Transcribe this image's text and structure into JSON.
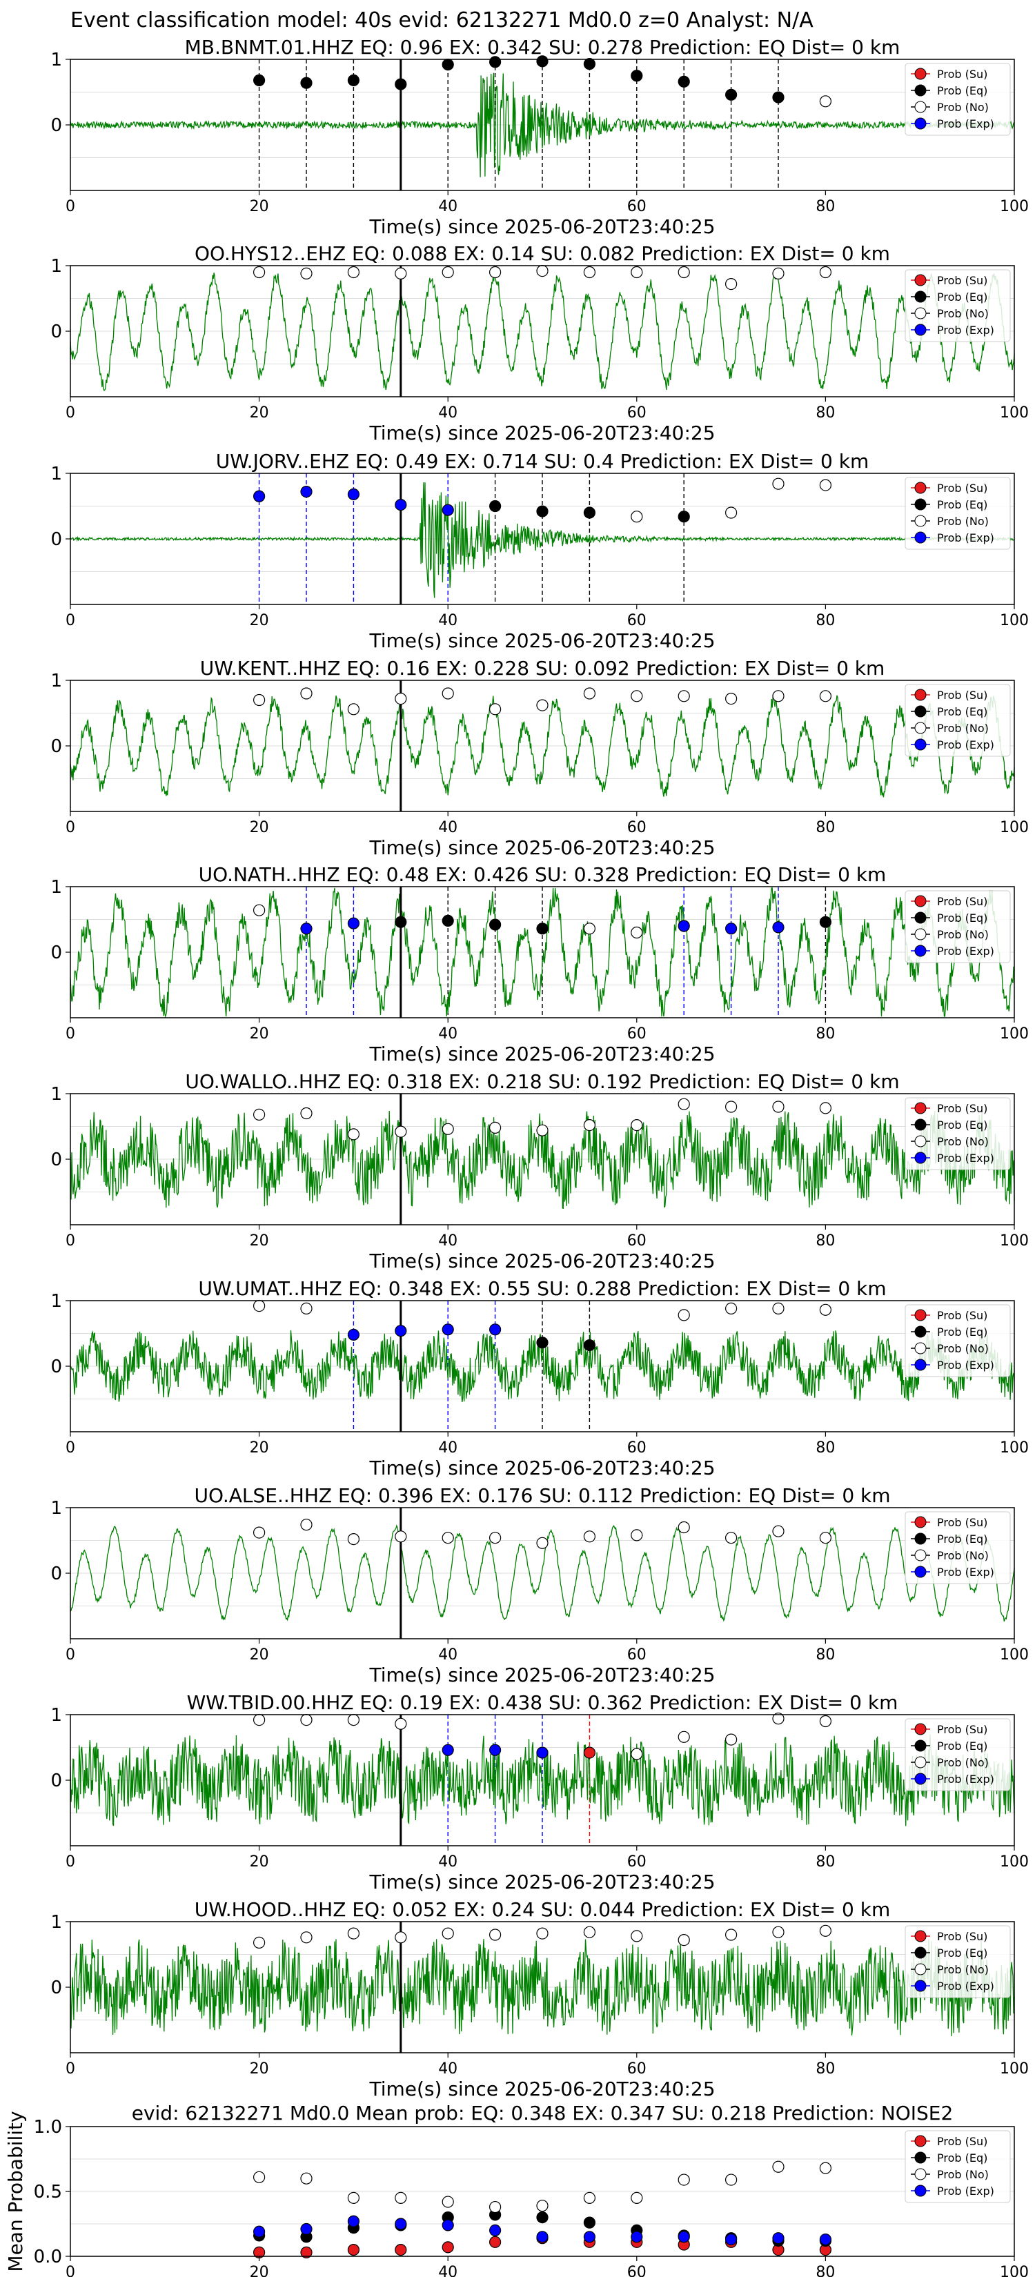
{
  "figure": {
    "title": "Event classification model: 40s evid: 62132271 Md0.0 z=0 Analyst: N/A"
  },
  "legend_items": [
    {
      "label": "Prob (Su)",
      "color": "#e41a1c",
      "fill": "#e41a1c"
    },
    {
      "label": "Prob (Eq)",
      "color": "#000000",
      "fill": "#000000"
    },
    {
      "label": "Prob (No)",
      "color": "#000000",
      "fill": "#ffffff"
    },
    {
      "label": "Prob (Exp)",
      "color": "#0000ff",
      "fill": "#0000ff"
    }
  ],
  "colors": {
    "waveform": "#008000",
    "eq_marker": "#000000",
    "su_marker": "#e41a1c",
    "exp_marker": "#0000ff",
    "no_marker_face": "#ffffff",
    "origin_line": "#000000",
    "grid": "#dddddd"
  },
  "chart_data": [
    {
      "type": "line",
      "title": "MB.BNMT.01.HHZ   EQ: 0.96  EX: 0.342  SU: 0.278   Prediction: EQ    Dist= 0 km",
      "xlabel": "Time(s) since 2025-06-20T23:40:25",
      "xlim": [
        0,
        100
      ],
      "x_ticks": [
        0,
        20,
        40,
        60,
        80,
        100
      ],
      "y_ticks": [
        0,
        1
      ],
      "origin_time": 35,
      "waveform": {
        "style": "event",
        "event_time": 45,
        "noise": 0.05,
        "amplitude": 0.95
      },
      "points": [
        {
          "x": 20,
          "y": 0.68,
          "class": "eq"
        },
        {
          "x": 25,
          "y": 0.64,
          "class": "eq"
        },
        {
          "x": 30,
          "y": 0.68,
          "class": "eq"
        },
        {
          "x": 35,
          "y": 0.62,
          "class": "eq"
        },
        {
          "x": 40,
          "y": 0.92,
          "class": "eq"
        },
        {
          "x": 45,
          "y": 0.96,
          "class": "eq"
        },
        {
          "x": 50,
          "y": 0.97,
          "class": "eq"
        },
        {
          "x": 55,
          "y": 0.93,
          "class": "eq"
        },
        {
          "x": 60,
          "y": 0.75,
          "class": "eq"
        },
        {
          "x": 65,
          "y": 0.66,
          "class": "eq"
        },
        {
          "x": 70,
          "y": 0.46,
          "class": "eq"
        },
        {
          "x": 75,
          "y": 0.42,
          "class": "eq"
        },
        {
          "x": 80,
          "y": 0.36,
          "class": "no"
        }
      ]
    },
    {
      "type": "line",
      "title": "OO.HYS12..EHZ   EQ: 0.088  EX: 0.14  SU: 0.082   Prediction: EX    Dist= 0 km",
      "xlabel": "Time(s) since 2025-06-20T23:40:25",
      "xlim": [
        0,
        100
      ],
      "x_ticks": [
        0,
        20,
        40,
        60,
        80,
        100
      ],
      "y_ticks": [
        0,
        1
      ],
      "origin_time": 35,
      "waveform": {
        "style": "oscillation",
        "noise": 0.1,
        "amplitude": 0.85
      },
      "points": [
        {
          "x": 20,
          "y": 0.9,
          "class": "no"
        },
        {
          "x": 25,
          "y": 0.88,
          "class": "no"
        },
        {
          "x": 30,
          "y": 0.9,
          "class": "no"
        },
        {
          "x": 35,
          "y": 0.88,
          "class": "no"
        },
        {
          "x": 40,
          "y": 0.9,
          "class": "no"
        },
        {
          "x": 45,
          "y": 0.9,
          "class": "no"
        },
        {
          "x": 50,
          "y": 0.92,
          "class": "no"
        },
        {
          "x": 55,
          "y": 0.9,
          "class": "no"
        },
        {
          "x": 60,
          "y": 0.9,
          "class": "no"
        },
        {
          "x": 65,
          "y": 0.9,
          "class": "no"
        },
        {
          "x": 70,
          "y": 0.72,
          "class": "no"
        },
        {
          "x": 75,
          "y": 0.88,
          "class": "no"
        },
        {
          "x": 80,
          "y": 0.9,
          "class": "no"
        }
      ]
    },
    {
      "type": "line",
      "title": "UW.JORV..EHZ   EQ: 0.49  EX: 0.714  SU: 0.4   Prediction: EX    Dist= 0 km",
      "xlabel": "Time(s) since 2025-06-20T23:40:25",
      "xlim": [
        0,
        100
      ],
      "x_ticks": [
        0,
        20,
        40,
        60,
        80,
        100
      ],
      "y_ticks": [
        0,
        1
      ],
      "origin_time": 35,
      "waveform": {
        "style": "event",
        "event_time": 39,
        "noise": 0.02,
        "amplitude": 0.95
      },
      "points": [
        {
          "x": 20,
          "y": 0.65,
          "class": "exp"
        },
        {
          "x": 25,
          "y": 0.72,
          "class": "exp"
        },
        {
          "x": 30,
          "y": 0.68,
          "class": "exp"
        },
        {
          "x": 35,
          "y": 0.52,
          "class": "exp"
        },
        {
          "x": 40,
          "y": 0.44,
          "class": "exp"
        },
        {
          "x": 45,
          "y": 0.5,
          "class": "eq"
        },
        {
          "x": 50,
          "y": 0.42,
          "class": "eq"
        },
        {
          "x": 55,
          "y": 0.4,
          "class": "eq"
        },
        {
          "x": 60,
          "y": 0.34,
          "class": "no"
        },
        {
          "x": 65,
          "y": 0.34,
          "class": "eq"
        },
        {
          "x": 70,
          "y": 0.4,
          "class": "no"
        },
        {
          "x": 75,
          "y": 0.84,
          "class": "no"
        },
        {
          "x": 80,
          "y": 0.82,
          "class": "no"
        }
      ]
    },
    {
      "type": "line",
      "title": "UW.KENT..HHZ   EQ: 0.16  EX: 0.228  SU: 0.092   Prediction: EX    Dist= 0 km",
      "xlabel": "Time(s) since 2025-06-20T23:40:25",
      "xlim": [
        0,
        100
      ],
      "x_ticks": [
        0,
        20,
        40,
        60,
        80,
        100
      ],
      "y_ticks": [
        0,
        1
      ],
      "origin_time": 35,
      "waveform": {
        "style": "oscillation",
        "noise": 0.12,
        "amplitude": 0.7
      },
      "points": [
        {
          "x": 20,
          "y": 0.7,
          "class": "no"
        },
        {
          "x": 25,
          "y": 0.8,
          "class": "no"
        },
        {
          "x": 30,
          "y": 0.56,
          "class": "no"
        },
        {
          "x": 35,
          "y": 0.72,
          "class": "no"
        },
        {
          "x": 40,
          "y": 0.8,
          "class": "no"
        },
        {
          "x": 45,
          "y": 0.56,
          "class": "no"
        },
        {
          "x": 50,
          "y": 0.62,
          "class": "no"
        },
        {
          "x": 55,
          "y": 0.8,
          "class": "no"
        },
        {
          "x": 60,
          "y": 0.76,
          "class": "no"
        },
        {
          "x": 65,
          "y": 0.76,
          "class": "no"
        },
        {
          "x": 70,
          "y": 0.72,
          "class": "no"
        },
        {
          "x": 75,
          "y": 0.76,
          "class": "no"
        },
        {
          "x": 80,
          "y": 0.76,
          "class": "no"
        }
      ]
    },
    {
      "type": "line",
      "title": "UO.NATH..HHZ   EQ: 0.48  EX: 0.426  SU: 0.328   Prediction: EQ    Dist= 0 km",
      "xlabel": "Time(s) since 2025-06-20T23:40:25",
      "xlim": [
        0,
        100
      ],
      "x_ticks": [
        0,
        20,
        40,
        60,
        80,
        100
      ],
      "y_ticks": [
        0,
        1
      ],
      "origin_time": 35,
      "waveform": {
        "style": "oscillation",
        "noise": 0.2,
        "amplitude": 0.85
      },
      "points": [
        {
          "x": 20,
          "y": 0.64,
          "class": "no"
        },
        {
          "x": 25,
          "y": 0.36,
          "class": "exp"
        },
        {
          "x": 30,
          "y": 0.44,
          "class": "exp"
        },
        {
          "x": 35,
          "y": 0.46,
          "class": "eq"
        },
        {
          "x": 40,
          "y": 0.48,
          "class": "eq"
        },
        {
          "x": 45,
          "y": 0.42,
          "class": "eq"
        },
        {
          "x": 50,
          "y": 0.36,
          "class": "eq"
        },
        {
          "x": 55,
          "y": 0.36,
          "class": "no"
        },
        {
          "x": 60,
          "y": 0.3,
          "class": "no"
        },
        {
          "x": 65,
          "y": 0.4,
          "class": "exp"
        },
        {
          "x": 70,
          "y": 0.36,
          "class": "exp"
        },
        {
          "x": 75,
          "y": 0.38,
          "class": "exp"
        },
        {
          "x": 80,
          "y": 0.46,
          "class": "eq"
        }
      ]
    },
    {
      "type": "line",
      "title": "UO.WALLO..HHZ   EQ: 0.318  EX: 0.218  SU: 0.192   Prediction: EQ    Dist= 0 km",
      "xlabel": "Time(s) since 2025-06-20T23:40:25",
      "xlim": [
        0,
        100
      ],
      "x_ticks": [
        0,
        20,
        40,
        60,
        80,
        100
      ],
      "y_ticks": [
        0,
        1
      ],
      "origin_time": 35,
      "waveform": {
        "style": "noisy",
        "noise": 0.45,
        "amplitude": 0.3
      },
      "points": [
        {
          "x": 20,
          "y": 0.68,
          "class": "no"
        },
        {
          "x": 25,
          "y": 0.7,
          "class": "no"
        },
        {
          "x": 30,
          "y": 0.38,
          "class": "no"
        },
        {
          "x": 35,
          "y": 0.42,
          "class": "no"
        },
        {
          "x": 40,
          "y": 0.46,
          "class": "no"
        },
        {
          "x": 45,
          "y": 0.48,
          "class": "no"
        },
        {
          "x": 50,
          "y": 0.44,
          "class": "no"
        },
        {
          "x": 55,
          "y": 0.52,
          "class": "no"
        },
        {
          "x": 60,
          "y": 0.52,
          "class": "no"
        },
        {
          "x": 65,
          "y": 0.84,
          "class": "no"
        },
        {
          "x": 70,
          "y": 0.8,
          "class": "no"
        },
        {
          "x": 75,
          "y": 0.8,
          "class": "no"
        },
        {
          "x": 80,
          "y": 0.78,
          "class": "no"
        }
      ]
    },
    {
      "type": "line",
      "title": "UW.UMAT..HHZ   EQ: 0.348  EX: 0.55  SU: 0.288   Prediction: EX    Dist= 0 km",
      "xlabel": "Time(s) since 2025-06-20T23:40:25",
      "xlim": [
        0,
        100
      ],
      "x_ticks": [
        0,
        20,
        40,
        60,
        80,
        100
      ],
      "y_ticks": [
        0,
        1
      ],
      "origin_time": 35,
      "waveform": {
        "style": "noisy",
        "noise": 0.3,
        "amplitude": 0.25
      },
      "points": [
        {
          "x": 20,
          "y": 0.92,
          "class": "no"
        },
        {
          "x": 25,
          "y": 0.88,
          "class": "no"
        },
        {
          "x": 30,
          "y": 0.48,
          "class": "exp"
        },
        {
          "x": 35,
          "y": 0.54,
          "class": "exp"
        },
        {
          "x": 40,
          "y": 0.56,
          "class": "exp"
        },
        {
          "x": 45,
          "y": 0.56,
          "class": "exp"
        },
        {
          "x": 50,
          "y": 0.36,
          "class": "eq"
        },
        {
          "x": 55,
          "y": 0.32,
          "class": "eq"
        },
        {
          "x": 65,
          "y": 0.78,
          "class": "no"
        },
        {
          "x": 70,
          "y": 0.88,
          "class": "no"
        },
        {
          "x": 75,
          "y": 0.88,
          "class": "no"
        },
        {
          "x": 80,
          "y": 0.86,
          "class": "no"
        }
      ]
    },
    {
      "type": "line",
      "title": "UO.ALSE..HHZ   EQ: 0.396  EX: 0.176  SU: 0.112   Prediction: EQ    Dist= 0 km",
      "xlabel": "Time(s) since 2025-06-20T23:40:25",
      "xlim": [
        0,
        100
      ],
      "x_ticks": [
        0,
        20,
        40,
        60,
        80,
        100
      ],
      "y_ticks": [
        0,
        1
      ],
      "origin_time": 35,
      "waveform": {
        "style": "oscillation",
        "noise": 0.04,
        "amplitude": 0.7
      },
      "points": [
        {
          "x": 20,
          "y": 0.62,
          "class": "no"
        },
        {
          "x": 25,
          "y": 0.74,
          "class": "no"
        },
        {
          "x": 30,
          "y": 0.52,
          "class": "no"
        },
        {
          "x": 35,
          "y": 0.56,
          "class": "no"
        },
        {
          "x": 40,
          "y": 0.54,
          "class": "no"
        },
        {
          "x": 45,
          "y": 0.54,
          "class": "no"
        },
        {
          "x": 50,
          "y": 0.46,
          "class": "no"
        },
        {
          "x": 55,
          "y": 0.56,
          "class": "no"
        },
        {
          "x": 60,
          "y": 0.58,
          "class": "no"
        },
        {
          "x": 65,
          "y": 0.7,
          "class": "no"
        },
        {
          "x": 70,
          "y": 0.54,
          "class": "no"
        },
        {
          "x": 75,
          "y": 0.64,
          "class": "no"
        },
        {
          "x": 80,
          "y": 0.54,
          "class": "no"
        }
      ]
    },
    {
      "type": "line",
      "title": "WW.TBID.00.HHZ   EQ: 0.19  EX: 0.438  SU: 0.362   Prediction: EX    Dist= 0 km",
      "xlabel": "Time(s) since 2025-06-20T23:40:25",
      "xlim": [
        0,
        100
      ],
      "x_ticks": [
        0,
        20,
        40,
        60,
        80,
        100
      ],
      "y_ticks": [
        0,
        1
      ],
      "origin_time": 35,
      "waveform": {
        "style": "noisy",
        "noise": 0.5,
        "amplitude": 0.2
      },
      "points": [
        {
          "x": 20,
          "y": 0.92,
          "class": "no"
        },
        {
          "x": 25,
          "y": 0.92,
          "class": "no"
        },
        {
          "x": 30,
          "y": 0.92,
          "class": "no"
        },
        {
          "x": 35,
          "y": 0.86,
          "class": "no"
        },
        {
          "x": 40,
          "y": 0.46,
          "class": "exp"
        },
        {
          "x": 45,
          "y": 0.46,
          "class": "exp"
        },
        {
          "x": 50,
          "y": 0.42,
          "class": "exp"
        },
        {
          "x": 55,
          "y": 0.42,
          "class": "su"
        },
        {
          "x": 60,
          "y": 0.4,
          "class": "no"
        },
        {
          "x": 65,
          "y": 0.66,
          "class": "no"
        },
        {
          "x": 70,
          "y": 0.62,
          "class": "no"
        },
        {
          "x": 75,
          "y": 0.94,
          "class": "no"
        },
        {
          "x": 80,
          "y": 0.9,
          "class": "no"
        }
      ]
    },
    {
      "type": "line",
      "title": "UW.HOOD..HHZ   EQ: 0.052  EX: 0.24  SU: 0.044   Prediction: EX    Dist= 0 km",
      "xlabel": "Time(s) since 2025-06-20T23:40:25",
      "xlim": [
        0,
        100
      ],
      "x_ticks": [
        0,
        20,
        40,
        60,
        80,
        100
      ],
      "y_ticks": [
        0,
        1
      ],
      "origin_time": 35,
      "waveform": {
        "style": "noisy",
        "noise": 0.55,
        "amplitude": 0.2
      },
      "points": [
        {
          "x": 20,
          "y": 0.68,
          "class": "no"
        },
        {
          "x": 25,
          "y": 0.76,
          "class": "no"
        },
        {
          "x": 30,
          "y": 0.82,
          "class": "no"
        },
        {
          "x": 35,
          "y": 0.76,
          "class": "no"
        },
        {
          "x": 40,
          "y": 0.82,
          "class": "no"
        },
        {
          "x": 45,
          "y": 0.8,
          "class": "no"
        },
        {
          "x": 50,
          "y": 0.82,
          "class": "no"
        },
        {
          "x": 55,
          "y": 0.84,
          "class": "no"
        },
        {
          "x": 60,
          "y": 0.78,
          "class": "no"
        },
        {
          "x": 65,
          "y": 0.72,
          "class": "no"
        },
        {
          "x": 70,
          "y": 0.8,
          "class": "no"
        },
        {
          "x": 75,
          "y": 0.84,
          "class": "no"
        },
        {
          "x": 80,
          "y": 0.86,
          "class": "no"
        }
      ]
    },
    {
      "type": "scatter",
      "title": "evid: 62132271  Md0.0   Mean prob:   EQ: 0.348  EX: 0.347  SU: 0.218   Prediction: NOISE2",
      "ylabel": "Mean Probability",
      "xlim": [
        0,
        100
      ],
      "ylim": [
        0,
        1
      ],
      "x_ticks": [
        0,
        20,
        40,
        60,
        80,
        100
      ],
      "y_ticks": [
        0.0,
        0.5,
        1.0
      ],
      "y_tick_labels": [
        "0.0",
        "0.5",
        "1.0"
      ],
      "x": [
        20,
        25,
        30,
        35,
        40,
        45,
        50,
        55,
        60,
        65,
        70,
        75,
        80
      ],
      "series": [
        {
          "name": "Prob (Su)",
          "class": "su",
          "values": [
            0.03,
            0.03,
            0.05,
            0.05,
            0.07,
            0.11,
            0.14,
            0.11,
            0.11,
            0.09,
            0.11,
            0.05,
            0.05
          ]
        },
        {
          "name": "Prob (Eq)",
          "class": "eq",
          "values": [
            0.16,
            0.15,
            0.22,
            0.24,
            0.3,
            0.32,
            0.3,
            0.26,
            0.2,
            0.16,
            0.14,
            0.12,
            0.12
          ]
        },
        {
          "name": "Prob (No)",
          "class": "no",
          "values": [
            0.61,
            0.6,
            0.45,
            0.45,
            0.42,
            0.38,
            0.39,
            0.45,
            0.45,
            0.59,
            0.59,
            0.69,
            0.68
          ]
        },
        {
          "name": "Prob (Exp)",
          "class": "exp",
          "values": [
            0.19,
            0.21,
            0.27,
            0.25,
            0.24,
            0.2,
            0.15,
            0.15,
            0.15,
            0.15,
            0.13,
            0.14,
            0.13
          ]
        }
      ]
    }
  ]
}
